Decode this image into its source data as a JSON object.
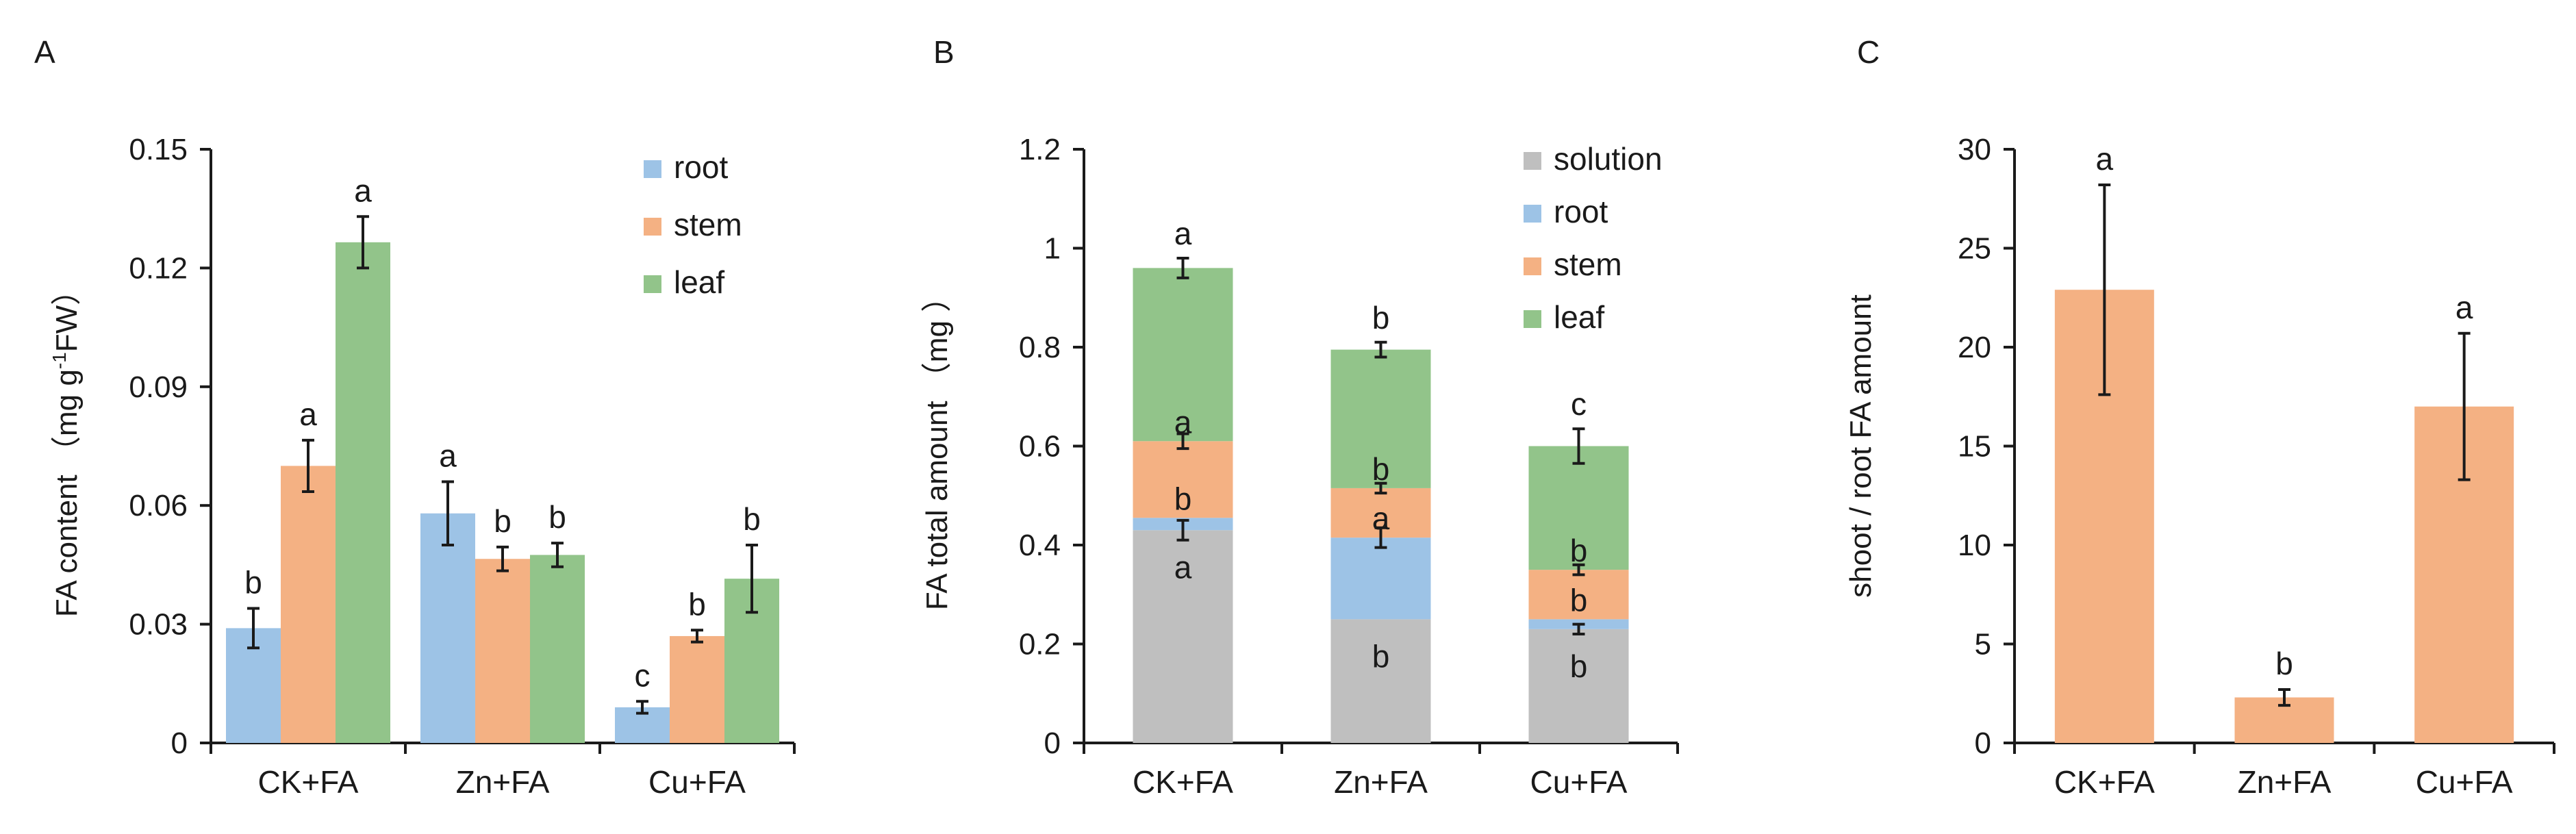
{
  "figure": {
    "colors": {
      "root": "#9DC3E6",
      "stem": "#F4B183",
      "leaf": "#92C48A",
      "solution": "#BFBFBF",
      "axis": "#1a1a1a"
    }
  },
  "chart_data": [
    {
      "panel": "A",
      "type": "bar",
      "title": "",
      "ylabel": "FA content （mg g-1FW）",
      "ylabel_parts": {
        "main": "FA content （mg g",
        "sup": "-1",
        "tail": "FW）"
      },
      "xlabel": "",
      "categories": [
        "CK+FA",
        "Zn+FA",
        "Cu+FA"
      ],
      "ylim": [
        0,
        0.15
      ],
      "yticks": [
        0,
        0.03,
        0.06,
        0.09,
        0.12,
        0.15
      ],
      "ytick_labels": [
        "0",
        "0.03",
        "0.06",
        "0.09",
        "0.12",
        "0.15"
      ],
      "legend_position": "top-right",
      "series": [
        {
          "name": "root",
          "color_key": "root",
          "values": [
            0.029,
            0.058,
            0.009
          ],
          "errors": [
            0.005,
            0.008,
            0.0015
          ],
          "letters": [
            "b",
            "a",
            "c"
          ]
        },
        {
          "name": "stem",
          "color_key": "stem",
          "values": [
            0.07,
            0.0465,
            0.027
          ],
          "errors": [
            0.0065,
            0.003,
            0.0015
          ],
          "letters": [
            "a",
            "b",
            "b"
          ]
        },
        {
          "name": "leaf",
          "color_key": "leaf",
          "values": [
            0.1265,
            0.0475,
            0.0415
          ],
          "errors": [
            0.0065,
            0.003,
            0.0085
          ],
          "letters": [
            "a",
            "b",
            "b"
          ]
        }
      ]
    },
    {
      "panel": "B",
      "type": "bar",
      "stacked": true,
      "title": "",
      "ylabel": "FA total amount （mg ）",
      "xlabel": "",
      "categories": [
        "CK+FA",
        "Zn+FA",
        "Cu+FA"
      ],
      "ylim": [
        0,
        1.2
      ],
      "yticks": [
        0,
        0.2,
        0.4,
        0.6,
        0.8,
        1.0,
        1.2
      ],
      "ytick_labels": [
        "0",
        "0.2",
        "0.4",
        "0.6",
        "0.8",
        "1",
        "1.2"
      ],
      "legend_position": "top-right",
      "series": [
        {
          "name": "solution",
          "color_key": "solution",
          "values": [
            0.43,
            0.25,
            0.23
          ],
          "errors": [
            0.02,
            0.0,
            0.01
          ],
          "letters": [
            "a",
            "b",
            "b"
          ]
        },
        {
          "name": "root",
          "color_key": "root",
          "values": [
            0.025,
            0.165,
            0.02
          ],
          "errors": [
            0.0,
            0.02,
            0.0
          ],
          "letters": [
            "b",
            "a",
            "b"
          ]
        },
        {
          "name": "stem",
          "color_key": "stem",
          "values": [
            0.155,
            0.1,
            0.1
          ],
          "errors": [
            0.015,
            0.01,
            0.01
          ],
          "letters": [
            "a",
            "b",
            "b"
          ]
        },
        {
          "name": "leaf",
          "color_key": "leaf",
          "values": [
            0.35,
            0.28,
            0.25
          ],
          "errors": [
            0.02,
            0.015,
            0.035
          ],
          "letters": [
            "a",
            "b",
            "c"
          ]
        }
      ]
    },
    {
      "panel": "C",
      "type": "bar",
      "title": "",
      "ylabel": "shoot / root  FA amount",
      "xlabel": "",
      "categories": [
        "CK+FA",
        "Zn+FA",
        "Cu+FA"
      ],
      "ylim": [
        0,
        30
      ],
      "yticks": [
        0,
        5,
        10,
        15,
        20,
        25,
        30
      ],
      "ytick_labels": [
        "0",
        "5",
        "10",
        "15",
        "20",
        "25",
        "30"
      ],
      "legend_position": "none",
      "series": [
        {
          "name": "shoot / root",
          "color_key": "stem",
          "values": [
            22.9,
            2.3,
            17.0
          ],
          "errors": [
            5.3,
            0.4,
            3.7
          ],
          "letters": [
            "a",
            "b",
            "a"
          ]
        }
      ]
    }
  ]
}
